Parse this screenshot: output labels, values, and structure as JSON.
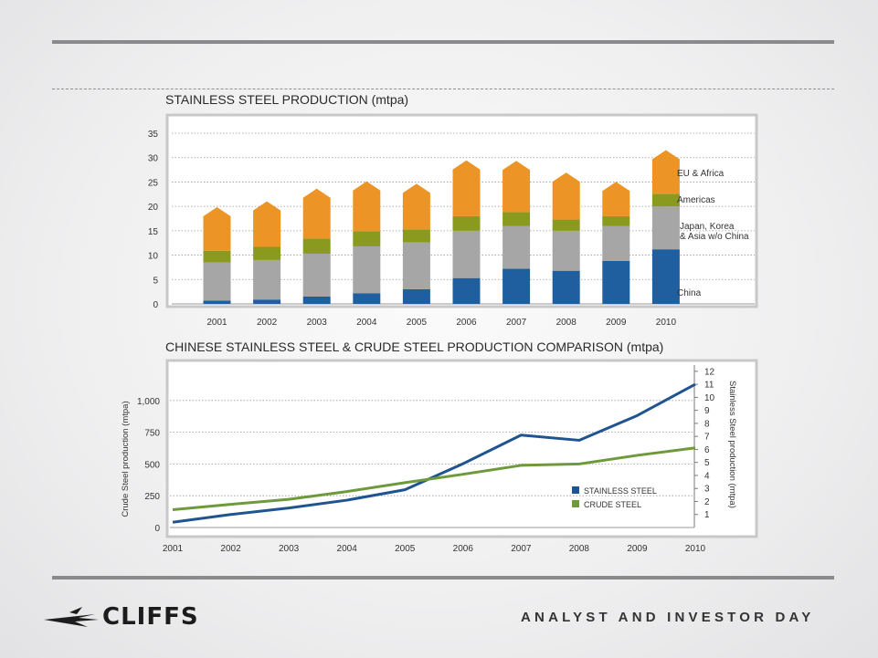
{
  "slide": {
    "brand": "CLIFFS",
    "footer": "ANALYST AND INVESTOR DAY",
    "colors": {
      "rule": "#8a8a8c",
      "china": "#1f5fa0",
      "japan": "#a6a6a6",
      "americas": "#8a9a1e",
      "eu": "#ec9426",
      "stainless_line": "#1f5490",
      "crude_line": "#6e9a3c"
    }
  },
  "chart_data": [
    {
      "type": "bar",
      "stacked": true,
      "title": "STAINLESS STEEL PRODUCTION (mtpa)",
      "categories": [
        "2001",
        "2002",
        "2003",
        "2004",
        "2005",
        "2006",
        "2007",
        "2008",
        "2009",
        "2010"
      ],
      "ylim": [
        0,
        35
      ],
      "yticks": [
        0,
        5,
        10,
        15,
        20,
        25,
        30,
        35
      ],
      "grid": true,
      "series": [
        {
          "name": "China",
          "values": [
            0.7,
            0.9,
            1.5,
            2.2,
            3.0,
            5.3,
            7.2,
            6.8,
            8.8,
            11.2
          ]
        },
        {
          "name": "Japan, Korea & Asia w/o China",
          "values": [
            7.8,
            8.1,
            8.8,
            9.6,
            9.6,
            9.7,
            8.8,
            8.2,
            7.2,
            8.8
          ]
        },
        {
          "name": "Americas",
          "values": [
            2.4,
            2.7,
            3.1,
            3.1,
            2.7,
            3.0,
            2.8,
            2.3,
            2.0,
            2.6
          ]
        },
        {
          "name": "EU & Africa",
          "values": [
            8.0,
            8.4,
            9.3,
            9.3,
            8.4,
            10.5,
            9.6,
            8.7,
            6.1,
            8.0
          ]
        }
      ]
    },
    {
      "type": "line",
      "title": "CHINESE STAINLESS STEEL & CRUDE STEEL PRODUCTION COMPARISON (mtpa)",
      "x": [
        "2001",
        "2002",
        "2003",
        "2004",
        "2005",
        "2006",
        "2007",
        "2008",
        "2009",
        "2010"
      ],
      "ylabel": "Crude Steel production (mtpa)",
      "ylim": [
        0,
        1250
      ],
      "yticks": [
        0,
        250,
        500,
        750,
        1000
      ],
      "ytick_labels": [
        "0",
        "250",
        "500",
        "750",
        "1,000"
      ],
      "y2label": "Stainless Steel production (mtpa)",
      "y2lim": [
        0,
        12.2
      ],
      "y2ticks": [
        1,
        2,
        3,
        4,
        5,
        6,
        7,
        8,
        9,
        10,
        11,
        12
      ],
      "grid": true,
      "series": [
        {
          "name": "STAINLESS STEEL",
          "axis": "right",
          "values": [
            0.4,
            1.0,
            1.5,
            2.1,
            2.9,
            4.9,
            7.1,
            6.7,
            8.6,
            11.0
          ]
        },
        {
          "name": "CRUDE STEEL",
          "axis": "left",
          "values": [
            140,
            182,
            222,
            283,
            353,
            419,
            489,
            500,
            568,
            627
          ]
        }
      ]
    }
  ]
}
